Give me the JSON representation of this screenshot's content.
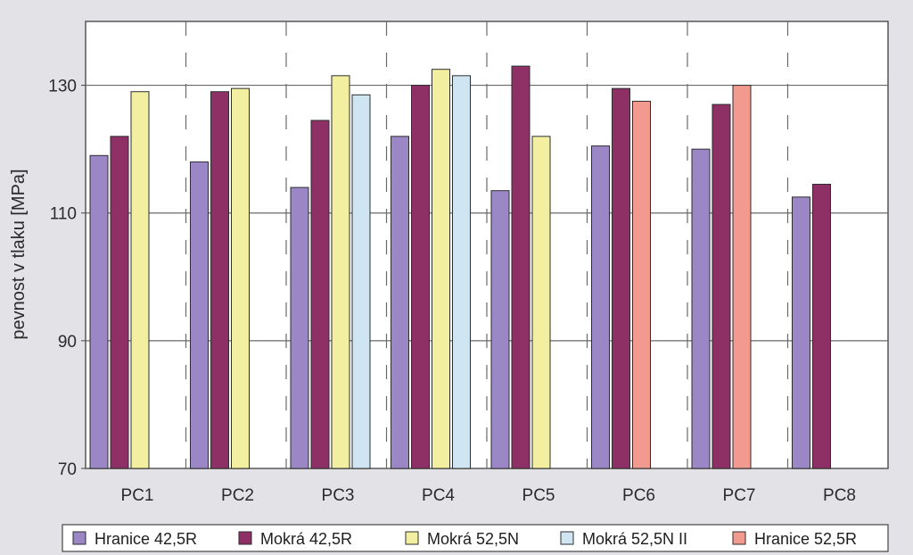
{
  "chart_data": {
    "type": "bar",
    "title": "",
    "xlabel": "",
    "ylabel": "pevnost v tlaku [MPa]",
    "ylim": [
      70,
      140
    ],
    "yticks": [
      70,
      90,
      110,
      130
    ],
    "grid": true,
    "legend_position": "bottom",
    "categories": [
      "PC1",
      "PC2",
      "PC3",
      "PC4",
      "PC5",
      "PC6",
      "PC7",
      "PC8"
    ],
    "series": [
      {
        "name": "Hranice 42,5R",
        "color": "#9b86c6",
        "values": [
          119,
          118,
          114,
          122,
          113.5,
          120.5,
          120,
          112.5
        ]
      },
      {
        "name": "Mokrá 42,5R",
        "color": "#8e2f66",
        "values": [
          122,
          129,
          124.5,
          130,
          133,
          129.5,
          127,
          114.5
        ]
      },
      {
        "name": "Mokrá 52,5N",
        "color": "#f2efa0",
        "values": [
          129,
          129.5,
          131.5,
          132.5,
          122,
          null,
          null,
          null
        ]
      },
      {
        "name": "Mokrá 52,5N II",
        "color": "#cfe6f2",
        "values": [
          null,
          null,
          128.5,
          131.5,
          null,
          null,
          null,
          null
        ]
      },
      {
        "name": "Hranice 52,5R",
        "color": "#f29a90",
        "values": [
          null,
          null,
          null,
          null,
          null,
          127.5,
          130,
          null
        ]
      }
    ]
  }
}
